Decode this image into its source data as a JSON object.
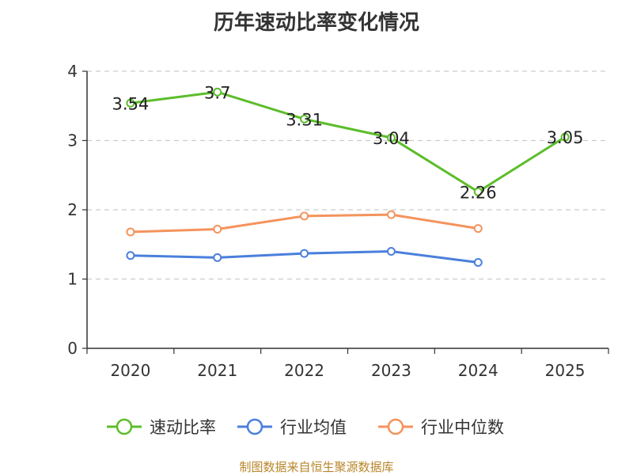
{
  "chart_data": {
    "type": "line",
    "title": "历年速动比率变化情况",
    "categories": [
      "2020",
      "2021",
      "2022",
      "2023",
      "2024",
      "2025"
    ],
    "ylim": [
      0,
      4
    ],
    "yticks": [
      "0",
      "1",
      "2",
      "3",
      "4"
    ],
    "grid": true,
    "legend_position": "bottom",
    "series": [
      {
        "name": "速动比率",
        "color": "#5cbd2a",
        "values": [
          3.54,
          3.7,
          3.31,
          3.04,
          2.26,
          3.05
        ],
        "labels": [
          "3.54",
          "3.7",
          "3.31",
          "3.04",
          "2.26",
          "3.05"
        ]
      },
      {
        "name": "行业均值",
        "color": "#4a7fdc",
        "values": [
          1.34,
          1.31,
          1.37,
          1.4,
          1.24,
          null
        ]
      },
      {
        "name": "行业中位数",
        "color": "#f4935c",
        "values": [
          1.68,
          1.72,
          1.91,
          1.93,
          1.73,
          null
        ]
      }
    ]
  },
  "source_note": "制图数据来自恒生聚源数据库"
}
